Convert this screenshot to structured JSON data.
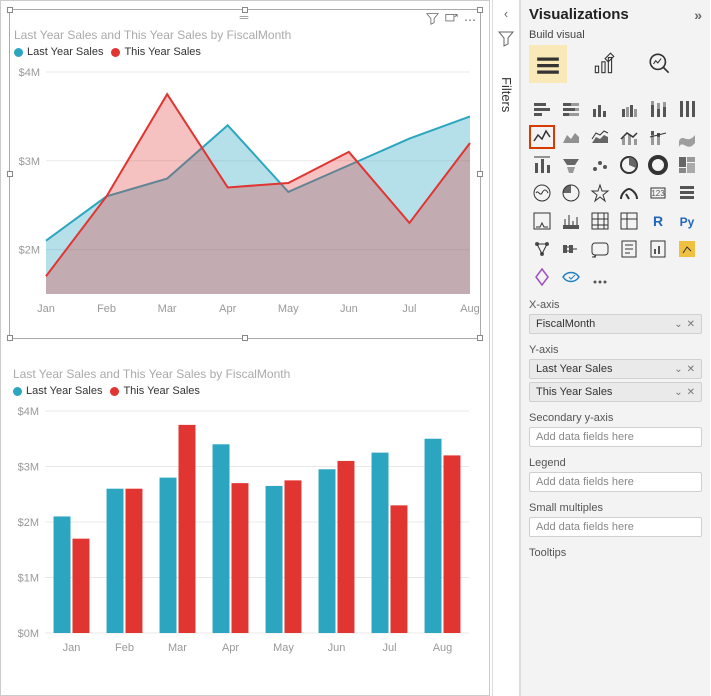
{
  "chart_common": {
    "title": "Last Year Sales and This Year Sales by FiscalMonth",
    "legend": [
      {
        "label": "Last Year Sales",
        "color": "#2ca6c0"
      },
      {
        "label": "This Year Sales",
        "color": "#e03531"
      }
    ],
    "categories": [
      "Jan",
      "Feb",
      "Mar",
      "Apr",
      "May",
      "Jun",
      "Jul",
      "Aug"
    ],
    "series": {
      "last_year": [
        2.1,
        2.6,
        2.8,
        3.4,
        2.65,
        2.95,
        3.25,
        3.5
      ],
      "this_year": [
        1.7,
        2.6,
        3.75,
        2.7,
        2.75,
        3.1,
        2.3,
        3.2
      ]
    },
    "y_axis": {
      "min": 0,
      "max": 4,
      "tick_step": 1,
      "tick_labels_area": [
        "$2M",
        "$3M",
        "$4M"
      ],
      "tick_labels_bar": [
        "$0M",
        "$1M",
        "$2M",
        "$3M",
        "$4M"
      ]
    },
    "colors": {
      "last_year_fill": "rgba(44,166,192,0.35)",
      "this_year_fill": "rgba(224,53,49,0.30)",
      "last_year_line": "#2ca6c0",
      "this_year_line": "#e03531",
      "grid": "#e8e8e8",
      "axis_text": "#999999"
    },
    "bar_width": 0.32
  },
  "filters": {
    "label": "Filters"
  },
  "viz_pane": {
    "title": "Visualizations",
    "build_label": "Build visual",
    "tabs": [
      "build",
      "format",
      "analytics"
    ],
    "gallery_selected_index": 7,
    "fields": {
      "xaxis": {
        "label": "X-axis",
        "value": "FiscalMonth"
      },
      "yaxis": {
        "label": "Y-axis",
        "values": [
          "Last Year Sales",
          "This Year Sales"
        ]
      },
      "secondary": {
        "label": "Secondary y-axis",
        "placeholder": "Add data fields here"
      },
      "legend": {
        "label": "Legend",
        "placeholder": "Add data fields here"
      },
      "small_multiples": {
        "label": "Small multiples",
        "placeholder": "Add data fields here"
      },
      "tooltips": {
        "label": "Tooltips"
      }
    }
  }
}
